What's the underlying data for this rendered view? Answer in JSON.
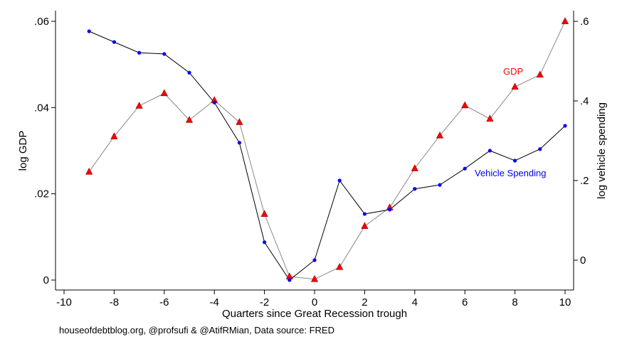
{
  "chart_data": {
    "type": "line",
    "xlabel": "Quarters since Great Recession trough",
    "ylabel_left": "log GDP",
    "ylabel_right": "log vehicle spending",
    "xlim": [
      -10,
      10
    ],
    "ylim_left": [
      0,
      0.06
    ],
    "ylim_right": [
      -0.05,
      0.6
    ],
    "x_ticks": [
      -10,
      -8,
      -6,
      -4,
      -2,
      0,
      2,
      4,
      6,
      8,
      10
    ],
    "x_tick_labels": [
      "-10",
      "-8",
      "-6",
      "-4",
      "-2",
      "0",
      "2",
      "4",
      "6",
      "8",
      "10"
    ],
    "y_left_ticks": [
      0,
      0.02,
      0.04,
      0.06
    ],
    "y_left_tick_labels": [
      "0",
      ".02",
      ".04",
      ".06"
    ],
    "y_right_ticks": [
      0,
      0.2,
      0.4,
      0.6
    ],
    "y_right_tick_labels": [
      "0",
      ".2",
      ".4",
      ".6"
    ],
    "x": [
      -9,
      -8,
      -7,
      -6,
      -5,
      -4,
      -3,
      -2,
      -1,
      0,
      1,
      2,
      3,
      4,
      5,
      6,
      7,
      8,
      9,
      10
    ],
    "series": [
      {
        "name": "GDP",
        "axis": "left",
        "color": "#ff0000",
        "line_color": "#888888",
        "marker": "triangle",
        "values": [
          0.0251,
          0.0333,
          0.0404,
          0.0433,
          0.0371,
          0.0417,
          0.0366,
          0.0153,
          0.0008,
          0.0002,
          0.003,
          0.0125,
          0.0168,
          0.0259,
          0.0335,
          0.0405,
          0.0374,
          0.0448,
          0.0476,
          0.06
        ]
      },
      {
        "name": "Vehicle Spending",
        "axis": "right",
        "color": "#0000ff",
        "line_color": "#000000",
        "marker": "circle",
        "values": [
          0.575,
          0.548,
          0.521,
          0.518,
          0.471,
          0.396,
          0.295,
          0.045,
          -0.05,
          0.0,
          0.2,
          0.116,
          0.127,
          0.179,
          0.189,
          0.23,
          0.275,
          0.25,
          0.279,
          0.3375
        ]
      }
    ],
    "annotations": {
      "gdp": "GDP",
      "vehicle": "Vehicle Spending"
    },
    "footer": "houseofdebtblog.org, @profsufi & @AtifRMian, Data source: FRED"
  }
}
